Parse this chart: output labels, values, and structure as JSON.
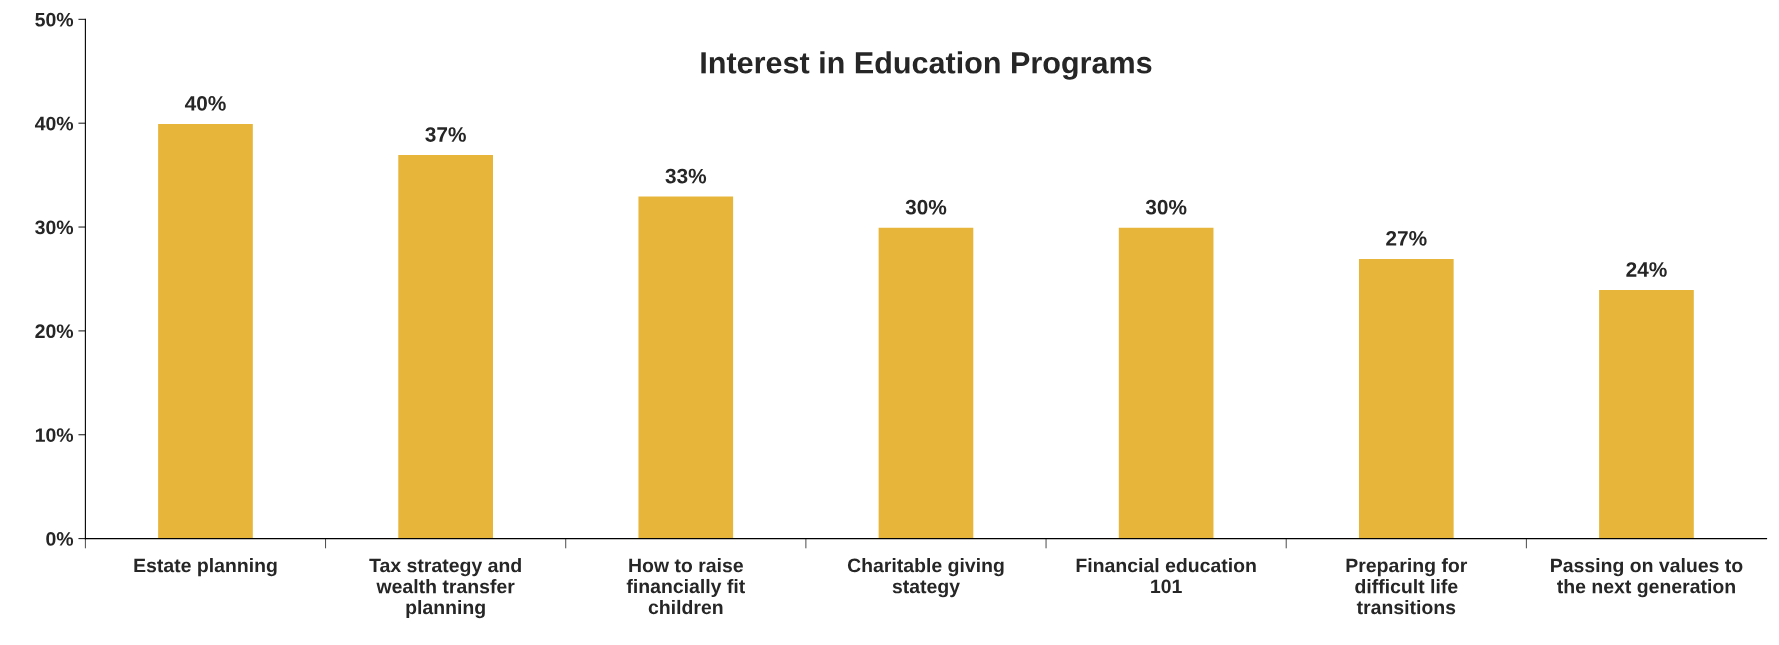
{
  "chart_data": {
    "type": "bar",
    "title": "Interest in Education Programs",
    "categories": [
      "Estate planning",
      "Tax strategy and wealth transfer planning",
      "How to raise financially fit children",
      "Charitable giving stategy",
      "Financial education 101",
      "Preparing for difficult life transitions",
      "Passing on values to the next generation"
    ],
    "values": [
      40,
      37,
      33,
      30,
      30,
      27,
      24
    ],
    "value_labels": [
      "40%",
      "37%",
      "33%",
      "30%",
      "30%",
      "27%",
      "24%"
    ],
    "color": "#e6b53a",
    "ylim": [
      0,
      50
    ],
    "yticks": [
      {
        "value": 0,
        "label": "0%"
      },
      {
        "value": 10,
        "label": "10%"
      },
      {
        "value": 20,
        "label": "20%"
      },
      {
        "value": 30,
        "label": "30%"
      },
      {
        "value": 40,
        "label": "40%"
      },
      {
        "value": 50,
        "label": "50%"
      }
    ],
    "grid": false,
    "legend": false
  }
}
